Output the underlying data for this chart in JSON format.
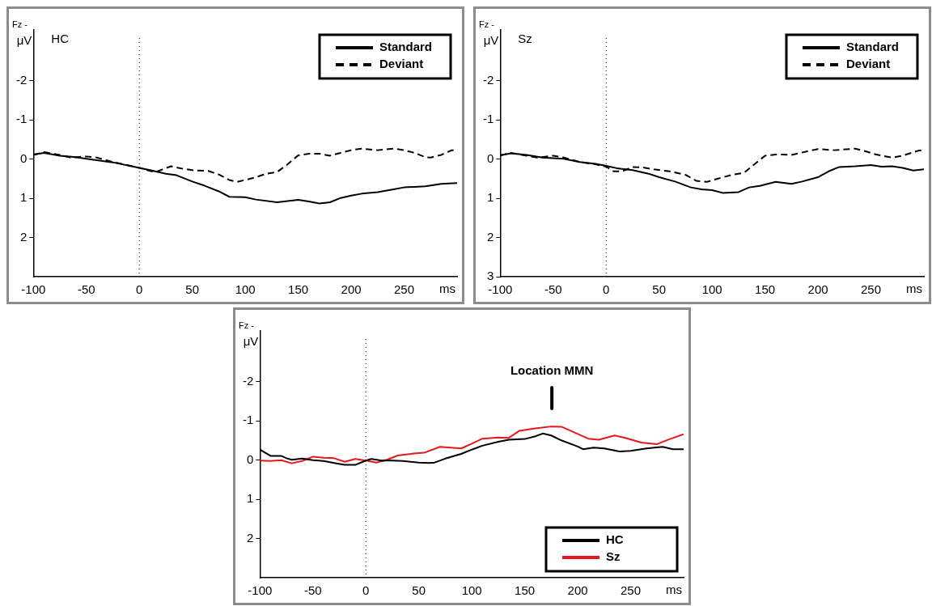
{
  "chart_data": [
    {
      "type": "line",
      "title": "HC",
      "ylabel": "μV",
      "xlabel": "ms",
      "annotations": [
        "Fz -"
      ],
      "xlim": [
        -100,
        300
      ],
      "xticks": [
        -100,
        -50,
        0,
        50,
        100,
        150,
        200,
        250
      ],
      "ylim": [
        3,
        -3.3
      ],
      "yticks": [
        -2,
        -1,
        0,
        1,
        2
      ],
      "grid": false,
      "legend": "top right",
      "marker": "none",
      "ref_lines": [
        {
          "axis": "x",
          "value": 0,
          "line_style": "dotted",
          "color": "#000000"
        }
      ],
      "series": [
        {
          "name": "Standard",
          "color": "#000000",
          "line_style": "solid",
          "x": [
            -100,
            -90,
            -75,
            -60,
            -50,
            -25,
            0,
            10,
            25,
            35,
            50,
            60,
            75,
            85,
            100,
            110,
            130,
            150,
            160,
            170,
            180,
            190,
            200,
            210,
            225,
            240,
            250,
            270,
            285,
            300
          ],
          "values": [
            -0.12,
            -0.16,
            -0.09,
            -0.05,
            -0.01,
            0.08,
            0.22,
            0.28,
            0.37,
            0.41,
            0.57,
            0.66,
            0.82,
            0.96,
            0.97,
            1.03,
            1.1,
            1.04,
            1.08,
            1.13,
            1.1,
            0.99,
            0.93,
            0.88,
            0.84,
            0.77,
            0.72,
            0.69,
            0.63,
            0.61
          ]
        },
        {
          "name": "Deviant",
          "color": "#000000",
          "line_style": "dashed",
          "x": [
            -100,
            -90,
            -75,
            -65,
            -50,
            -40,
            -25,
            0,
            10,
            15,
            25,
            30,
            40,
            50,
            65,
            75,
            85,
            92,
            100,
            110,
            120,
            130,
            140,
            150,
            160,
            170,
            180,
            190,
            200,
            210,
            225,
            240,
            250,
            260,
            270,
            275,
            285,
            295,
            300
          ],
          "values": [
            -0.11,
            -0.18,
            -0.11,
            -0.04,
            -0.07,
            -0.04,
            0.07,
            0.22,
            0.3,
            0.33,
            0.23,
            0.18,
            0.24,
            0.28,
            0.3,
            0.39,
            0.53,
            0.58,
            0.53,
            0.46,
            0.37,
            0.33,
            0.13,
            -0.1,
            -0.14,
            -0.14,
            -0.09,
            -0.16,
            -0.23,
            -0.27,
            -0.23,
            -0.27,
            -0.23,
            -0.16,
            -0.05,
            -0.04,
            -0.11,
            -0.23,
            -0.22
          ]
        }
      ]
    },
    {
      "type": "line",
      "title": "Sz",
      "ylabel": "μV",
      "xlabel": "ms",
      "annotations": [
        "Fz -"
      ],
      "xlim": [
        -100,
        300
      ],
      "xticks": [
        -100,
        -50,
        0,
        50,
        100,
        150,
        200,
        250
      ],
      "ylim": [
        3,
        -3.3
      ],
      "yticks": [
        -2,
        -1,
        0,
        1,
        2,
        3
      ],
      "grid": false,
      "legend": "top right",
      "marker": "none",
      "ref_lines": [
        {
          "axis": "x",
          "value": 0,
          "line_style": "dotted",
          "color": "#000000"
        }
      ],
      "series": [
        {
          "name": "Standard",
          "color": "#000000",
          "line_style": "solid",
          "x": [
            -100,
            -90,
            -75,
            -60,
            -40,
            -25,
            -10,
            0,
            10,
            25,
            40,
            50,
            65,
            80,
            90,
            100,
            110,
            125,
            135,
            145,
            160,
            175,
            185,
            200,
            210,
            220,
            235,
            250,
            260,
            270,
            280,
            290,
            300
          ],
          "values": [
            -0.1,
            -0.15,
            -0.11,
            -0.04,
            -0.01,
            0.07,
            0.12,
            0.17,
            0.23,
            0.28,
            0.37,
            0.46,
            0.57,
            0.72,
            0.77,
            0.79,
            0.86,
            0.84,
            0.72,
            0.68,
            0.58,
            0.63,
            0.57,
            0.46,
            0.31,
            0.2,
            0.18,
            0.15,
            0.19,
            0.18,
            0.22,
            0.29,
            0.26
          ]
        },
        {
          "name": "Deviant",
          "color": "#000000",
          "line_style": "dashed",
          "x": [
            -100,
            -90,
            -75,
            -65,
            -50,
            -40,
            -25,
            -10,
            0,
            7,
            15,
            25,
            35,
            45,
            60,
            75,
            85,
            95,
            105,
            120,
            130,
            140,
            150,
            160,
            175,
            190,
            200,
            215,
            235,
            245,
            255,
            270,
            280,
            295,
            300
          ],
          "values": [
            -0.1,
            -0.16,
            -0.09,
            -0.04,
            -0.09,
            -0.04,
            0.07,
            0.13,
            0.19,
            0.31,
            0.31,
            0.2,
            0.21,
            0.26,
            0.31,
            0.4,
            0.55,
            0.58,
            0.5,
            0.39,
            0.35,
            0.13,
            -0.09,
            -0.12,
            -0.11,
            -0.2,
            -0.26,
            -0.23,
            -0.27,
            -0.2,
            -0.12,
            -0.04,
            -0.09,
            -0.22,
            -0.22
          ]
        }
      ]
    },
    {
      "type": "line",
      "ylabel": "μV",
      "xlabel": "ms",
      "annotations": [
        "Fz -",
        "Location MMN"
      ],
      "xlim": [
        -100,
        300
      ],
      "xticks": [
        -100,
        -50,
        0,
        50,
        100,
        150,
        200,
        250
      ],
      "ylim": [
        3,
        -3.3
      ],
      "yticks": [
        -2,
        -1,
        0,
        1,
        2
      ],
      "grid": false,
      "legend": "bottom right",
      "marker": "none",
      "ref_lines": [
        {
          "axis": "x",
          "value": 0,
          "line_style": "dotted",
          "color": "#000000"
        }
      ],
      "series": [
        {
          "name": "HC",
          "color": "#000000",
          "line_style": "solid",
          "x": [
            -100,
            -95,
            -90,
            -80,
            -75,
            -70,
            -60,
            -50,
            -40,
            -30,
            -20,
            -10,
            0,
            5,
            15,
            25,
            35,
            50,
            60,
            65,
            75,
            90,
            100,
            110,
            125,
            135,
            150,
            160,
            167,
            175,
            185,
            200,
            205,
            215,
            225,
            240,
            250,
            265,
            280,
            290,
            300
          ],
          "values": [
            -0.27,
            -0.19,
            -0.11,
            -0.11,
            -0.05,
            -0.01,
            -0.04,
            0,
            0.02,
            0.07,
            0.12,
            0.12,
            0.01,
            -0.03,
            0.01,
            0.01,
            0.02,
            0.06,
            0.07,
            0.06,
            -0.04,
            -0.16,
            -0.27,
            -0.37,
            -0.47,
            -0.52,
            -0.54,
            -0.61,
            -0.68,
            -0.63,
            -0.5,
            -0.35,
            -0.28,
            -0.32,
            -0.3,
            -0.22,
            -0.24,
            -0.3,
            -0.34,
            -0.28,
            -0.28
          ]
        },
        {
          "name": "Sz",
          "color": "#e8161b",
          "line_style": "solid",
          "x": [
            -100,
            -90,
            -80,
            -70,
            -60,
            -50,
            -40,
            -30,
            -20,
            -10,
            0,
            10,
            20,
            30,
            45,
            55,
            70,
            80,
            90,
            100,
            110,
            125,
            135,
            145,
            160,
            175,
            185,
            195,
            210,
            220,
            235,
            245,
            260,
            275,
            285,
            300
          ],
          "values": [
            0.01,
            0.02,
            0,
            0.08,
            0.02,
            -0.09,
            -0.06,
            -0.05,
            0.04,
            -0.03,
            0.01,
            0.06,
            -0.01,
            -0.12,
            -0.17,
            -0.19,
            -0.34,
            -0.32,
            -0.3,
            -0.42,
            -0.55,
            -0.58,
            -0.57,
            -0.75,
            -0.81,
            -0.86,
            -0.85,
            -0.73,
            -0.55,
            -0.52,
            -0.63,
            -0.57,
            -0.45,
            -0.41,
            -0.52,
            -0.66
          ]
        }
      ]
    }
  ]
}
